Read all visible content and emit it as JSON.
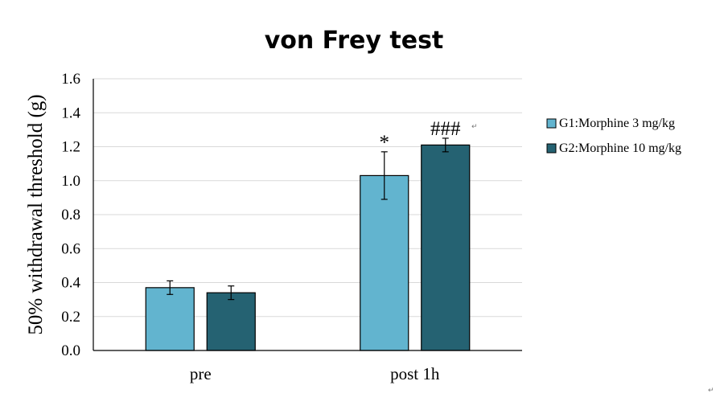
{
  "chart_data": {
    "type": "bar",
    "title": "von Frey test",
    "xlabel": "",
    "ylabel": "50% withdrawal threshold (g)",
    "categories": [
      "pre",
      "post 1h"
    ],
    "ylim": [
      0,
      1.6
    ],
    "yticks": [
      "0.0",
      "0.2",
      "0.4",
      "0.6",
      "0.8",
      "1.0",
      "1.2",
      "1.4",
      "1.6"
    ],
    "grid": true,
    "legend_position": "right",
    "series": [
      {
        "name": "G1:Morphine 3 mg/kg",
        "color": "#62b4cf",
        "values": [
          0.37,
          1.03
        ],
        "errors": [
          0.04,
          0.14
        ],
        "annotations": [
          "",
          "*"
        ]
      },
      {
        "name": "G2:Morphine 10 mg/kg",
        "color": "#256272",
        "values": [
          0.34,
          1.21
        ],
        "errors": [
          0.04,
          0.04
        ],
        "annotations": [
          "",
          "###"
        ]
      }
    ]
  },
  "marks": {
    "paragraph_mark": "↵"
  }
}
